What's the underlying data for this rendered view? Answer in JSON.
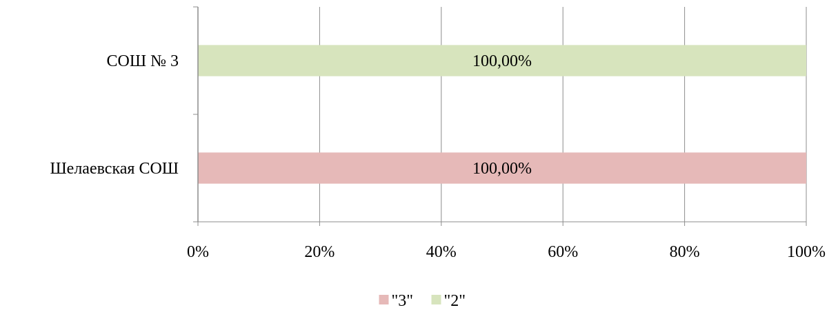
{
  "chart_data": {
    "type": "bar",
    "orientation": "horizontal",
    "stacked_percent": true,
    "categories": [
      "Шелаевская СОШ",
      "СОШ № 3"
    ],
    "series": [
      {
        "name": "\"3\"",
        "color": "#e6b9b8",
        "values": [
          100,
          0
        ],
        "labels": [
          "100,00%",
          ""
        ]
      },
      {
        "name": "\"2\"",
        "color": "#d7e4bd",
        "values": [
          0,
          100
        ],
        "labels": [
          "",
          "100,00%"
        ]
      }
    ],
    "x_ticks": [
      "0%",
      "20%",
      "40%",
      "60%",
      "80%",
      "100%"
    ],
    "xlim": [
      0,
      100
    ],
    "grid": "vertical",
    "legend_position": "bottom"
  }
}
